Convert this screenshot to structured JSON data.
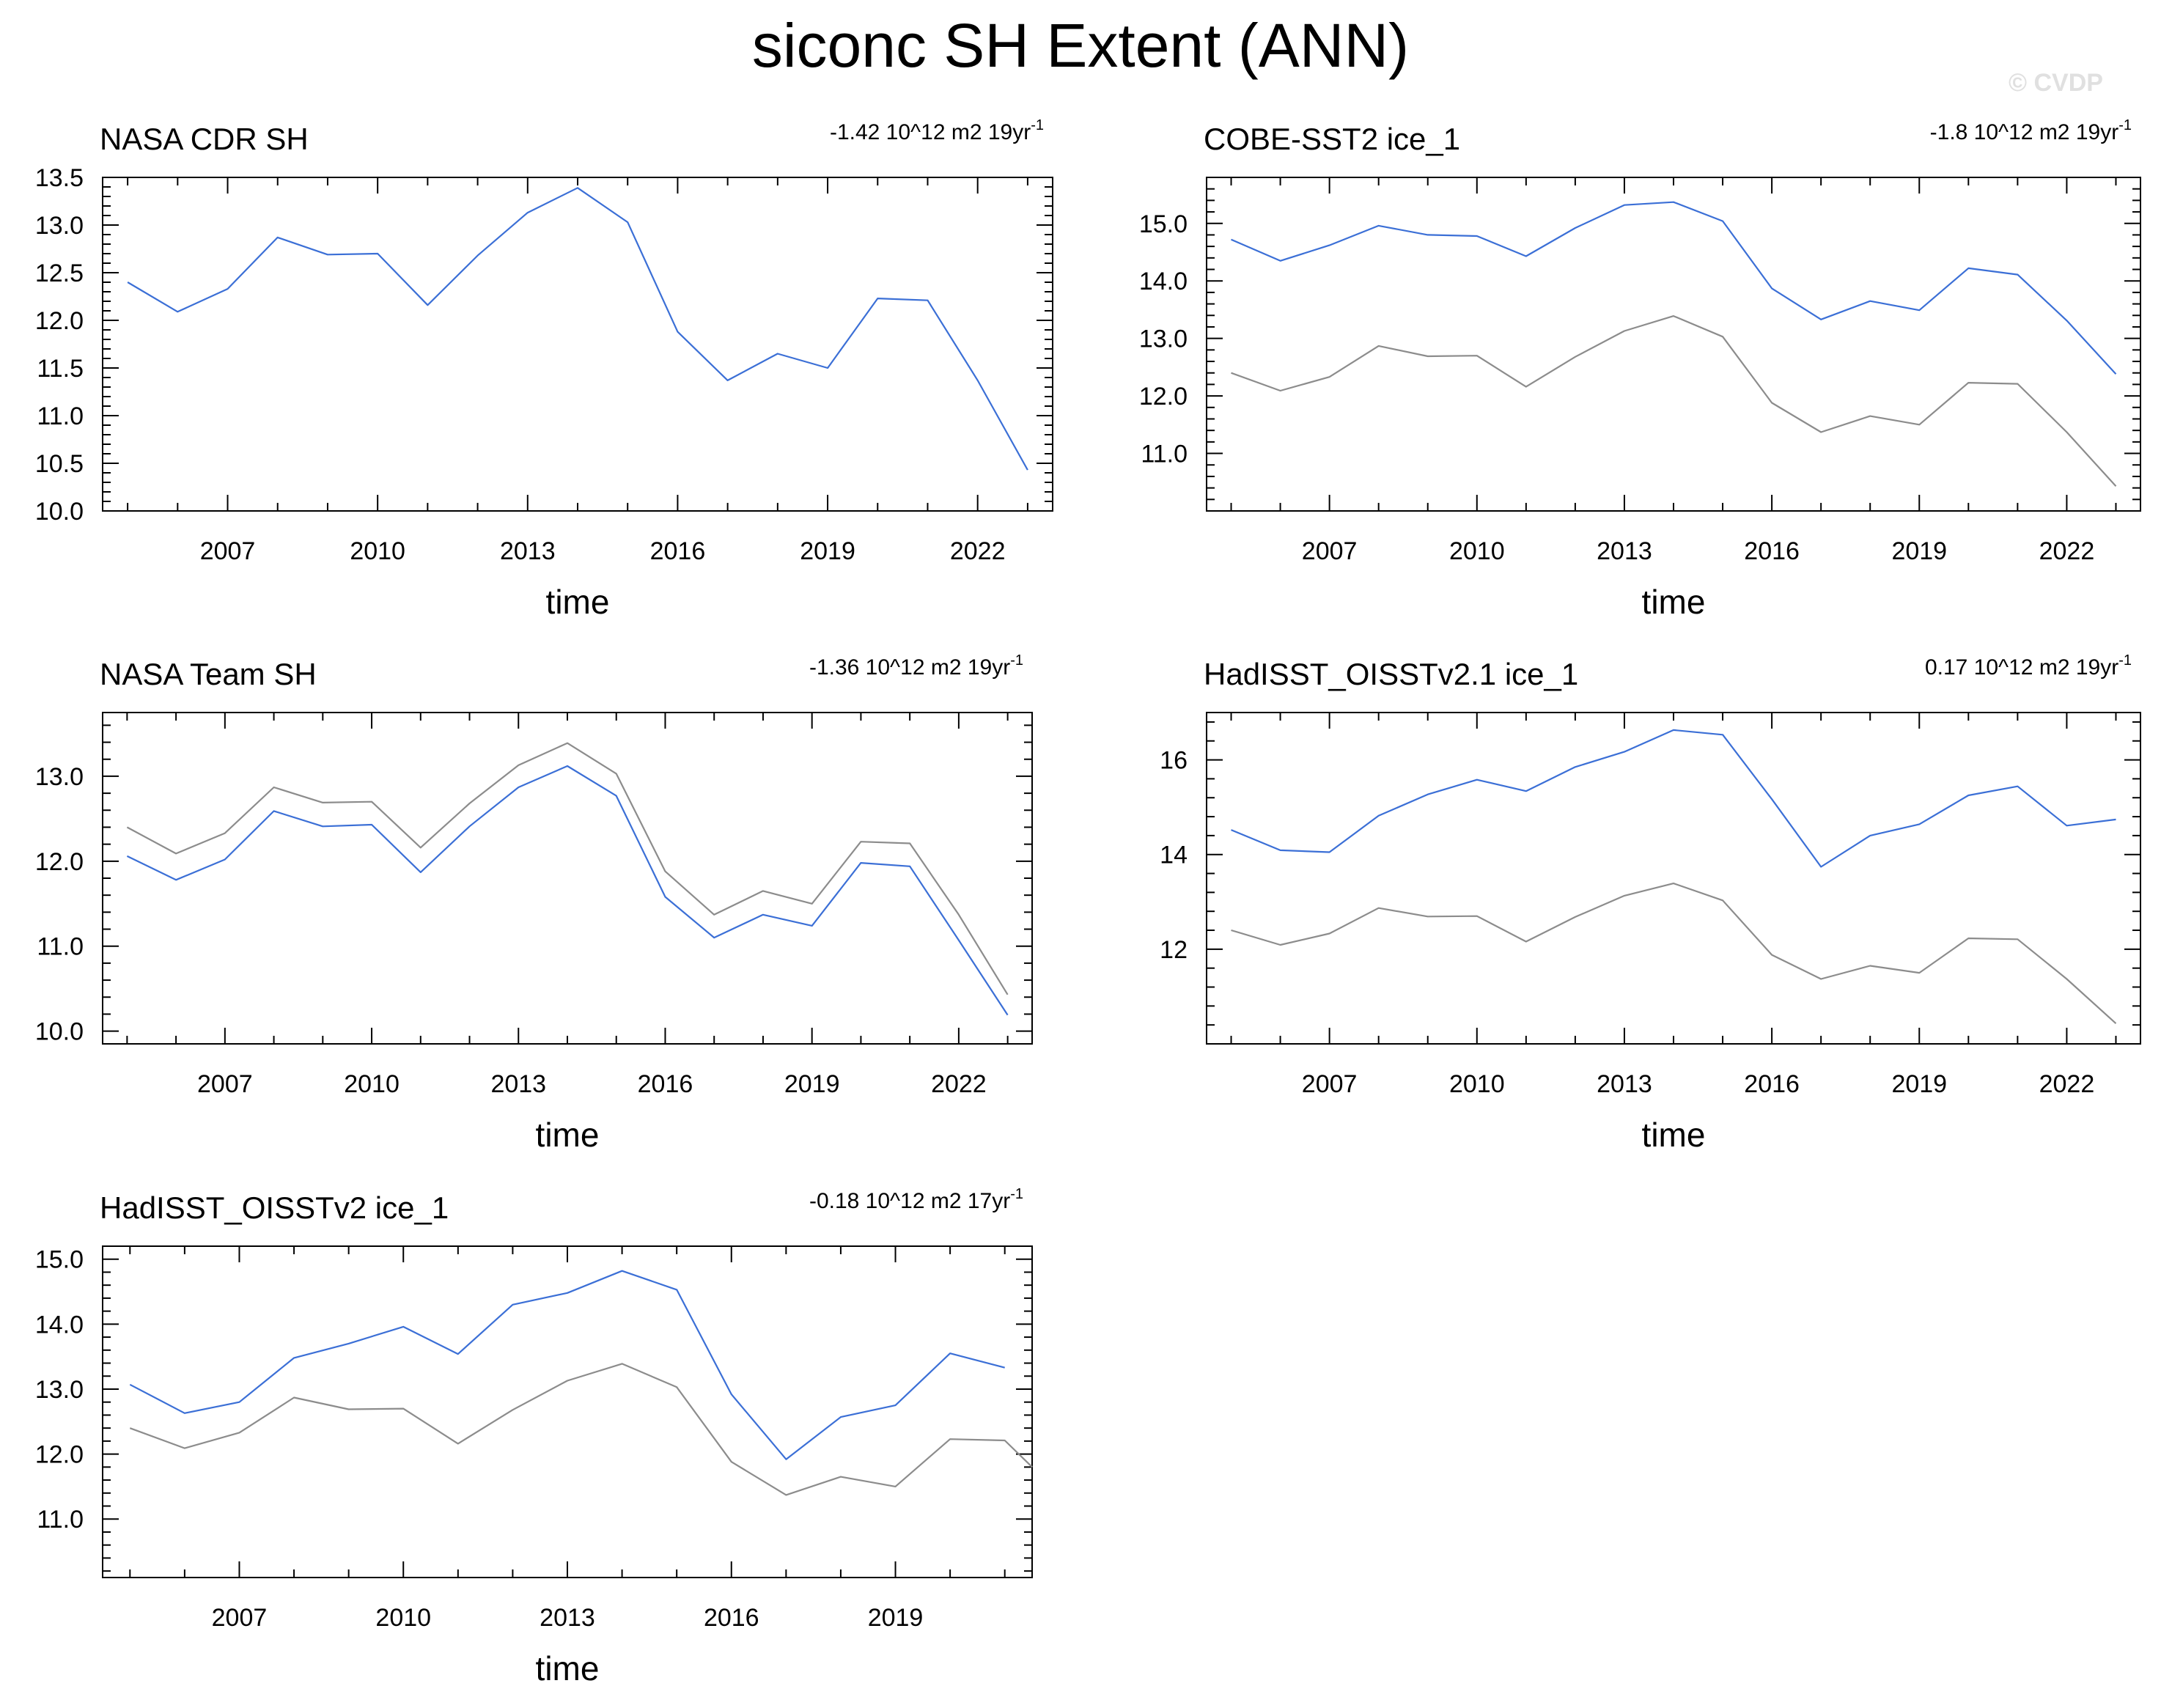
{
  "title": "siconc SH Extent (ANN)",
  "watermark": "© CVDP",
  "colors": {
    "model_line": "#3b6fd6",
    "reference_line": "#8c8c8c",
    "axis": "#000000"
  },
  "chart_data": [
    {
      "type": "line",
      "title": "NASA CDR SH",
      "annotation": "-1.42 10^12 m2 19yr",
      "annotation_sup": "-1",
      "xlabel": "time",
      "ylabel": "",
      "xlim": [
        2004.5,
        2023.5
      ],
      "ylim": [
        10.0,
        13.5
      ],
      "xticks": [
        2007,
        2010,
        2013,
        2016,
        2019,
        2022
      ],
      "yticks": [
        "10.0",
        "10.5",
        "11.0",
        "11.5",
        "12.0",
        "12.5",
        "13.0",
        "13.5"
      ],
      "x": [
        2005,
        2006,
        2007,
        2008,
        2009,
        2010,
        2011,
        2012,
        2013,
        2014,
        2015,
        2016,
        2017,
        2018,
        2019,
        2020,
        2021,
        2022,
        2023
      ],
      "series": [
        {
          "color": "#3b6fd6",
          "values": [
            12.4,
            12.09,
            12.33,
            12.87,
            12.69,
            12.7,
            12.16,
            12.68,
            13.13,
            13.39,
            13.03,
            11.88,
            11.37,
            11.65,
            11.5,
            12.23,
            12.21,
            11.37,
            10.43
          ]
        }
      ]
    },
    {
      "type": "line",
      "title": "COBE-SST2 ice_1",
      "annotation": "-1.8 10^12 m2 19yr",
      "annotation_sup": "-1",
      "xlabel": "time",
      "ylabel": "",
      "xlim": [
        2004.5,
        2023.5
      ],
      "ylim": [
        10.0,
        15.8
      ],
      "xticks": [
        2007,
        2010,
        2013,
        2016,
        2019,
        2022
      ],
      "yticks": [
        "11.0",
        "12.0",
        "13.0",
        "14.0",
        "15.0"
      ],
      "x": [
        2005,
        2006,
        2007,
        2008,
        2009,
        2010,
        2011,
        2012,
        2013,
        2014,
        2015,
        2016,
        2017,
        2018,
        2019,
        2020,
        2021,
        2022,
        2023
      ],
      "series": [
        {
          "color": "#3b6fd6",
          "values": [
            14.72,
            14.35,
            14.62,
            14.96,
            14.8,
            14.78,
            14.43,
            14.92,
            15.32,
            15.37,
            15.04,
            13.87,
            13.33,
            13.65,
            13.49,
            14.22,
            14.11,
            13.31,
            12.38
          ]
        },
        {
          "color": "#8c8c8c",
          "values": [
            12.4,
            12.09,
            12.33,
            12.87,
            12.69,
            12.7,
            12.16,
            12.68,
            13.13,
            13.39,
            13.03,
            11.88,
            11.37,
            11.65,
            11.5,
            12.23,
            12.21,
            11.37,
            10.43
          ]
        }
      ]
    },
    {
      "type": "line",
      "title": "NASA Team SH",
      "annotation": "-1.36 10^12 m2 19yr",
      "annotation_sup": "-1",
      "xlabel": "time",
      "ylabel": "",
      "xlim": [
        2004.5,
        2023.5
      ],
      "ylim": [
        9.85,
        13.75
      ],
      "xticks": [
        2007,
        2010,
        2013,
        2016,
        2019,
        2022
      ],
      "yticks": [
        "10.0",
        "11.0",
        "12.0",
        "13.0"
      ],
      "x": [
        2005,
        2006,
        2007,
        2008,
        2009,
        2010,
        2011,
        2012,
        2013,
        2014,
        2015,
        2016,
        2017,
        2018,
        2019,
        2020,
        2021,
        2022,
        2023
      ],
      "series": [
        {
          "color": "#8c8c8c",
          "values": [
            12.4,
            12.09,
            12.33,
            12.87,
            12.69,
            12.7,
            12.16,
            12.68,
            13.13,
            13.39,
            13.03,
            11.88,
            11.37,
            11.65,
            11.5,
            12.23,
            12.21,
            11.37,
            10.43
          ]
        },
        {
          "color": "#3b6fd6",
          "values": [
            12.06,
            11.78,
            12.02,
            12.59,
            12.41,
            12.43,
            11.87,
            12.41,
            12.87,
            13.12,
            12.77,
            11.58,
            11.1,
            11.37,
            11.24,
            11.98,
            11.94,
            11.07,
            10.19
          ]
        }
      ]
    },
    {
      "type": "line",
      "title": "HadISST_OISSTv2.1 ice_1",
      "annotation": "0.17 10^12 m2 19yr",
      "annotation_sup": "-1",
      "xlabel": "time",
      "ylabel": "",
      "xlim": [
        2004.5,
        2023.5
      ],
      "ylim": [
        10.0,
        17.0
      ],
      "xticks": [
        2007,
        2010,
        2013,
        2016,
        2019,
        2022
      ],
      "yticks": [
        "12",
        "14",
        "16"
      ],
      "x": [
        2005,
        2006,
        2007,
        2008,
        2009,
        2010,
        2011,
        2012,
        2013,
        2014,
        2015,
        2016,
        2017,
        2018,
        2019,
        2020,
        2021,
        2022,
        2023
      ],
      "series": [
        {
          "color": "#3b6fd6",
          "values": [
            14.52,
            14.09,
            14.05,
            14.82,
            15.27,
            15.58,
            15.34,
            15.85,
            16.17,
            16.63,
            16.53,
            15.17,
            13.74,
            14.4,
            14.64,
            15.25,
            15.44,
            14.61,
            14.74
          ]
        },
        {
          "color": "#8c8c8c",
          "values": [
            12.4,
            12.09,
            12.33,
            12.87,
            12.69,
            12.7,
            12.16,
            12.68,
            13.13,
            13.39,
            13.03,
            11.88,
            11.37,
            11.65,
            11.5,
            12.23,
            12.21,
            11.37,
            10.43
          ]
        }
      ]
    },
    {
      "type": "line",
      "title": "HadISST_OISSTv2 ice_1",
      "annotation": "-0.18 10^12 m2 17yr",
      "annotation_sup": "-1",
      "xlabel": "time",
      "ylabel": "",
      "xlim": [
        2004.5,
        2021.5
      ],
      "ylim": [
        10.1,
        15.2
      ],
      "xticks": [
        2007,
        2010,
        2013,
        2016,
        2019
      ],
      "yticks": [
        "11.0",
        "12.0",
        "13.0",
        "14.0",
        "15.0"
      ],
      "x": [
        2005,
        2006,
        2007,
        2008,
        2009,
        2010,
        2011,
        2012,
        2013,
        2014,
        2015,
        2016,
        2017,
        2018,
        2019,
        2020,
        2021
      ],
      "series": [
        {
          "color": "#3b6fd6",
          "values": [
            13.07,
            12.63,
            12.8,
            13.48,
            13.7,
            13.96,
            13.54,
            14.3,
            14.48,
            14.82,
            14.53,
            12.92,
            11.92,
            12.57,
            12.75,
            13.55,
            13.33
          ]
        },
        {
          "color": "#8c8c8c",
          "values": [
            12.4,
            12.09,
            12.33,
            12.87,
            12.69,
            12.7,
            12.16,
            12.68,
            13.13,
            13.39,
            13.03,
            11.88,
            11.37,
            11.65,
            11.5,
            12.23,
            12.21,
            11.8
          ],
          "x": [
            2005,
            2006,
            2007,
            2008,
            2009,
            2010,
            2011,
            2012,
            2013,
            2014,
            2015,
            2016,
            2017,
            2018,
            2019,
            2020,
            2021,
            2021.5
          ]
        }
      ]
    }
  ]
}
